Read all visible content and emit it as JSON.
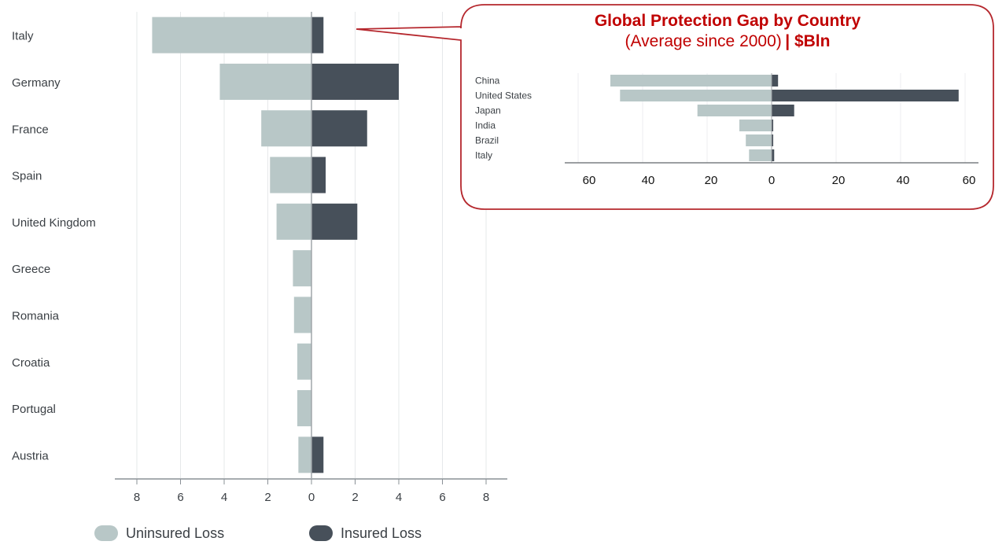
{
  "chart_data": [
    {
      "type": "bar",
      "orientation": "horizontal-diverging",
      "categories": [
        "Italy",
        "Germany",
        "France",
        "Spain",
        "United Kingdom",
        "Greece",
        "Romania",
        "Croatia",
        "Portugal",
        "Austria"
      ],
      "series": [
        {
          "name": "Uninsured Loss",
          "values": [
            7.3,
            4.2,
            2.3,
            1.9,
            1.6,
            0.85,
            0.8,
            0.65,
            0.65,
            0.6
          ],
          "color": "#b8c7c7",
          "direction": "left"
        },
        {
          "name": "Insured Loss",
          "values": [
            0.55,
            4.0,
            2.55,
            0.65,
            2.1,
            0,
            0,
            0,
            0,
            0.55
          ],
          "color": "#47505a",
          "direction": "right"
        }
      ],
      "xticks": [
        "8",
        "6",
        "4",
        "2",
        "0",
        "2",
        "4",
        "6",
        "8"
      ],
      "xlim": [
        -8,
        8
      ],
      "grid": true,
      "legend_position": "bottom"
    },
    {
      "type": "bar",
      "orientation": "horizontal-diverging",
      "title": "Global Protection Gap by Country",
      "subtitle": "(Average since 2000)",
      "unit": "| $Bln",
      "categories": [
        "China",
        "United States",
        "Japan",
        "India",
        "Brazil",
        "Italy"
      ],
      "series": [
        {
          "name": "Uninsured Loss",
          "values": [
            50,
            47,
            23,
            10,
            8,
            7
          ],
          "color": "#b8c7c7",
          "direction": "left"
        },
        {
          "name": "Insured Loss",
          "values": [
            2,
            58,
            7,
            0.5,
            0.5,
            0.8
          ],
          "color": "#47505a",
          "direction": "right"
        }
      ],
      "xticks": [
        "60",
        "40",
        "20",
        "0",
        "20",
        "40",
        "60"
      ],
      "xlim": [
        -62,
        62
      ],
      "grid": true
    }
  ],
  "colors": {
    "uninsured": "#b8c7c7",
    "insured": "#47505a",
    "callout_border": "#b5272d",
    "title": "#c00000"
  }
}
